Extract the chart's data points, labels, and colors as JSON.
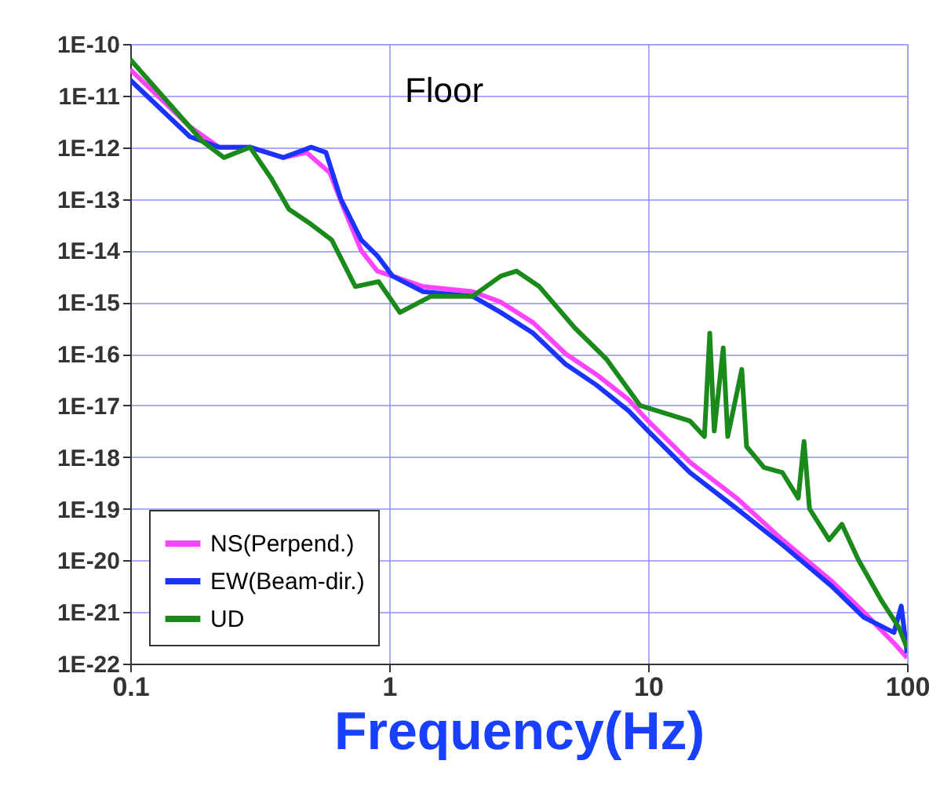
{
  "chart_data": {
    "type": "line",
    "xlabel": "Frequency(Hz)",
    "annotations": [
      "Floor"
    ],
    "log": "xy",
    "grid": true,
    "legend": "bottom left",
    "marker": "none",
    "line_style": "solid",
    "xlim": [
      0.1,
      100
    ],
    "xticks": [
      0.1,
      1,
      10,
      100
    ],
    "ylim": [
      1e-22,
      1e-10
    ],
    "yticks": [
      {
        "value": 1e-10,
        "label": "1E-10"
      },
      {
        "value": 1e-11,
        "label": "1E-11"
      },
      {
        "value": 1e-12,
        "label": "1E-12"
      },
      {
        "value": 1e-13,
        "label": "1E-13"
      },
      {
        "value": 1e-14,
        "label": "1E-14"
      },
      {
        "value": 1e-15,
        "label": "1E-15"
      },
      {
        "value": 1e-16,
        "label": "1E-16"
      },
      {
        "value": 1e-17,
        "label": "1E-17"
      },
      {
        "value": 1e-18,
        "label": "1E-18"
      },
      {
        "value": 1e-19,
        "label": "1E-19"
      },
      {
        "value": 1e-20,
        "label": "1E-20"
      },
      {
        "value": 1e-21,
        "label": "1E-21"
      },
      {
        "value": 1e-22,
        "label": "1E-22"
      }
    ],
    "series": [
      {
        "name": "NS(Perpend.)",
        "color": "#ff44ff",
        "x": [
          0.1,
          0.17,
          0.22,
          0.29,
          0.39,
          0.48,
          0.59,
          0.67,
          0.78,
          0.9,
          1.03,
          1.35,
          2.1,
          2.7,
          3.6,
          4.8,
          6.3,
          8.4,
          10,
          14.5,
          22,
          33,
          51,
          68,
          89,
          100
        ],
        "values": [
          3.2e-11,
          2.5e-12,
          1e-12,
          1e-12,
          6.3e-13,
          7.9e-13,
          3.2e-13,
          6.3e-14,
          1e-14,
          4e-15,
          3.2e-15,
          2e-15,
          1.6e-15,
          1e-15,
          4e-16,
          1e-16,
          4e-17,
          1.3e-17,
          5e-18,
          8e-19,
          1.6e-19,
          2.5e-20,
          4e-21,
          1e-21,
          2.5e-22,
          1.3e-22
        ]
      },
      {
        "name": "EW(Beam-dir.)",
        "color": "#1a33ff",
        "x": [
          0.1,
          0.17,
          0.22,
          0.29,
          0.39,
          0.5,
          0.57,
          0.65,
          0.78,
          0.9,
          1.03,
          1.35,
          2.1,
          2.7,
          3.6,
          4.8,
          6.3,
          8.4,
          10,
          14.5,
          22,
          33,
          51,
          68,
          89,
          95,
          100
        ],
        "values": [
          2e-11,
          1.6e-12,
          1e-12,
          1e-12,
          6.3e-13,
          1e-12,
          7.9e-13,
          1e-13,
          1.6e-14,
          7.9e-15,
          3.2e-15,
          1.6e-15,
          1.3e-15,
          6.3e-16,
          2.5e-16,
          6.3e-17,
          2.5e-17,
          7.9e-18,
          3.2e-18,
          5e-19,
          1e-19,
          2e-20,
          3.2e-21,
          7.9e-22,
          4e-22,
          1.3e-21,
          1.6e-22
        ]
      },
      {
        "name": "UD",
        "color": "#1a8a1a",
        "x": [
          0.1,
          0.19,
          0.23,
          0.29,
          0.35,
          0.41,
          0.5,
          0.6,
          0.74,
          0.91,
          1.1,
          1.45,
          2.1,
          2.7,
          3.1,
          3.8,
          5.2,
          6.9,
          9.3,
          14.5,
          16.5,
          17.3,
          18,
          19.5,
          20.3,
          23,
          24,
          28,
          33,
          38,
          40,
          42,
          50,
          56,
          65,
          80,
          93,
          100
        ],
        "values": [
          5e-11,
          1.3e-12,
          6.3e-13,
          1e-12,
          2.5e-13,
          6.3e-14,
          3.2e-14,
          1.6e-14,
          2e-15,
          2.5e-15,
          6.3e-16,
          1.3e-15,
          1.3e-15,
          3.2e-15,
          4e-15,
          2e-15,
          3.2e-16,
          7.9e-17,
          1e-17,
          5e-18,
          2.5e-18,
          2.5e-16,
          3.2e-18,
          1.3e-16,
          2.5e-18,
          5e-17,
          1.6e-18,
          6.3e-19,
          5e-19,
          1.6e-19,
          2e-18,
          1e-19,
          2.5e-20,
          5e-20,
          1e-20,
          1.6e-21,
          5e-22,
          2e-22
        ]
      }
    ]
  }
}
